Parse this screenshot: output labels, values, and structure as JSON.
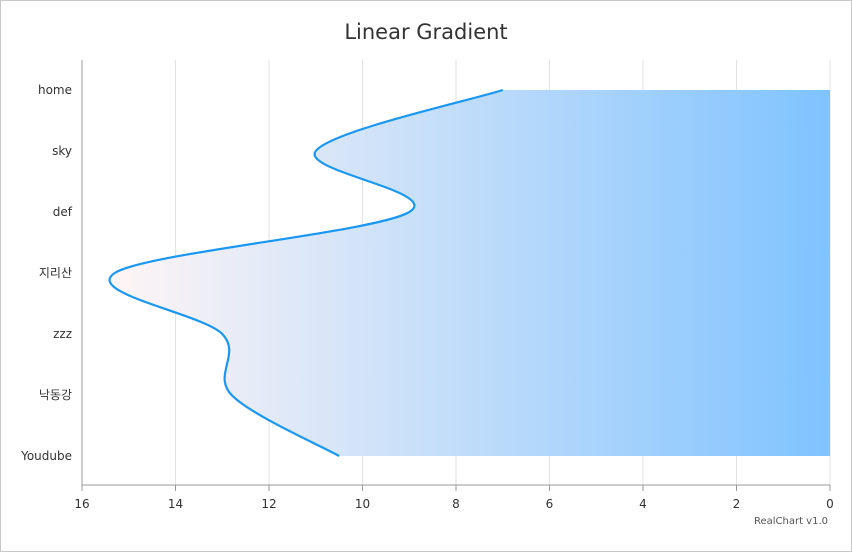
{
  "chart_data": {
    "type": "area",
    "orientation": "horizontal",
    "title": "Linear Gradient",
    "categories": [
      "home",
      "sky",
      "def",
      "지리산",
      "zzz",
      "낙동강",
      "Youdube"
    ],
    "values": [
      7,
      11,
      9,
      15.3,
      13,
      12.8,
      10.5
    ],
    "xlim": [
      0,
      16
    ],
    "x_reversed": true,
    "ticks": [
      16,
      14,
      12,
      10,
      8,
      6,
      4,
      2,
      0
    ],
    "grid": true,
    "line_color": "#1a97f0",
    "gradient": [
      "#fff5f5",
      "#7fc3ff"
    ],
    "credit": "RealChart v1.0"
  }
}
